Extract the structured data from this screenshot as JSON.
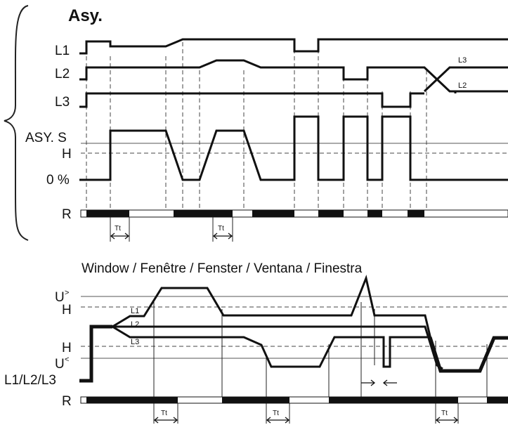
{
  "asy": {
    "title": "Asy.",
    "labels": {
      "l1": "L1",
      "l2": "L2",
      "l3": "L3",
      "asy_s": "ASY. S",
      "h": "H",
      "zero": "0 %",
      "r": "R"
    },
    "cross_l3": "L3",
    "cross_l2": "L2",
    "tt_1": "Tt",
    "tt_2": "Tt"
  },
  "window": {
    "title": "Window / Fenêtre / Fenster / Ventana / Finestra",
    "labels": {
      "u_over": "U",
      "h_top": "H",
      "h_bot": "H",
      "u_under": "U",
      "l123": "L1/L2/L3",
      "r": "R"
    },
    "sup_over": ">",
    "sup_under": "<",
    "small_l1": "L1",
    "small_l2": "L2",
    "small_l3": "L3",
    "tt_1": "Tt",
    "tt_2": "Tt",
    "tt_3": "Tt"
  }
}
